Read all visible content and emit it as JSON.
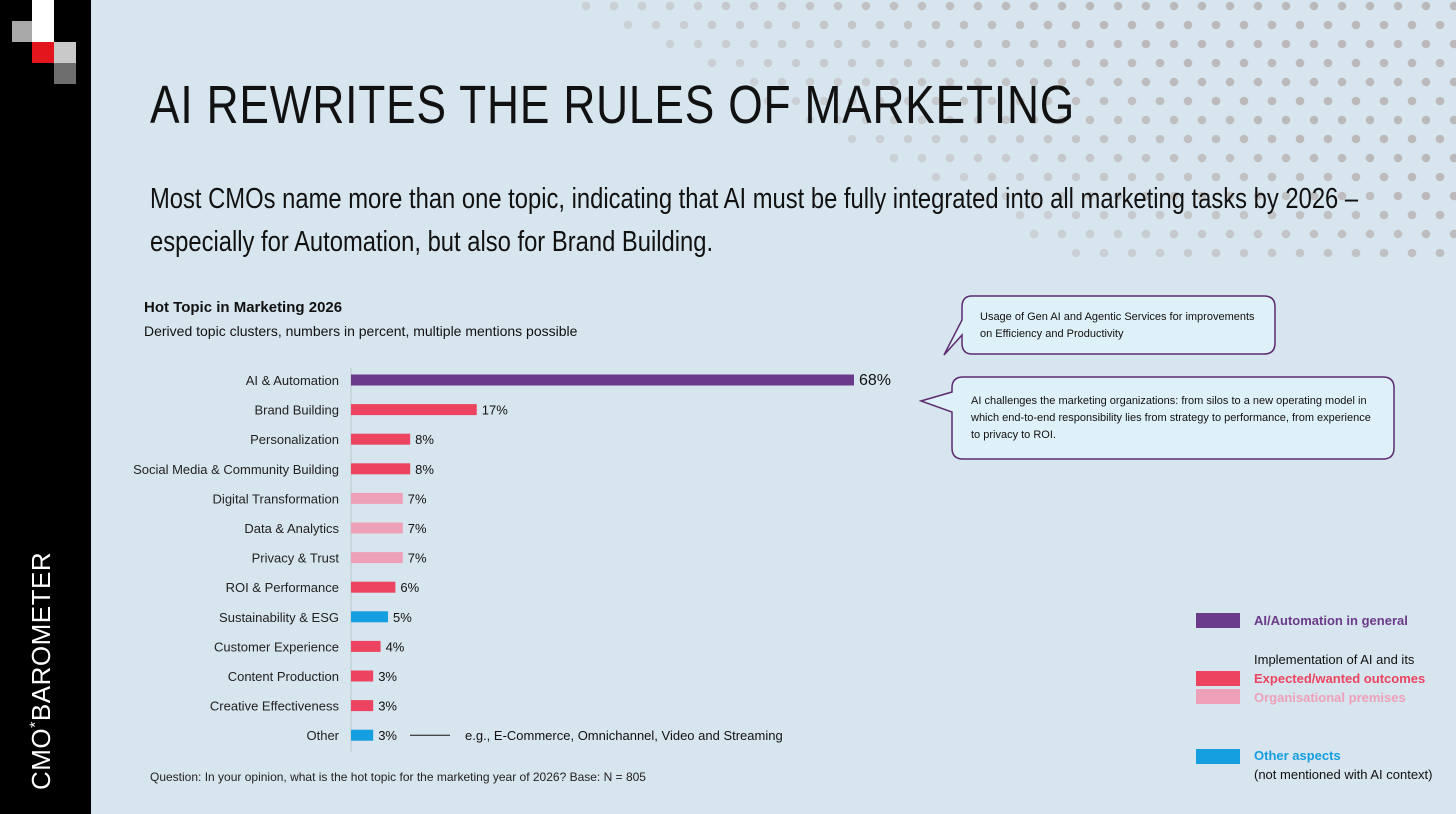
{
  "brand": {
    "name_part1": "CMO",
    "star": "*",
    "name_part2": "BAROMETER"
  },
  "title": "AI REWRITES THE RULES OF MARKETING",
  "subtitle": "Most CMOs name more than one topic, indicating that AI must be fully integrated into all marketing tasks by 2026 – especially for Automation, but also for Brand Building.",
  "chart_data": {
    "type": "bar",
    "orientation": "horizontal",
    "title": "Hot Topic in Marketing 2026",
    "subtitle": "Derived topic clusters, numbers in percent, multiple mentions possible",
    "categories": [
      "AI & Automation",
      "Brand Building",
      "Personalization",
      "Social Media & Community Building",
      "Digital Transformation",
      "Data & Analytics",
      "Privacy & Trust",
      "ROI & Performance",
      "Sustainability & ESG",
      "Customer Experience",
      "Content Production",
      "Creative Effectiveness",
      "Other"
    ],
    "values": [
      68,
      17,
      8,
      8,
      7,
      7,
      7,
      6,
      5,
      4,
      3,
      3,
      3
    ],
    "value_labels": [
      "68%",
      "17%",
      "8%",
      "8%",
      "7%",
      "7%",
      "7%",
      "6%",
      "5%",
      "4%",
      "3%",
      "3%",
      "3%"
    ],
    "groups": [
      "general",
      "outcomes",
      "outcomes",
      "outcomes",
      "premises",
      "premises",
      "premises",
      "outcomes",
      "other",
      "outcomes",
      "outcomes",
      "outcomes",
      "other"
    ],
    "colors": {
      "general": "#6b3a8a",
      "outcomes": "#ec4460",
      "premises": "#eea0b8",
      "other": "#159fe0"
    },
    "xlim": [
      0,
      68
    ],
    "annotation": "e.g., E-Commerce, Omnichannel, Video and Streaming"
  },
  "callouts": [
    "Usage of Gen AI and Agentic Services for improvements on Efficiency and Productivity",
    "AI challenges the marketing organizations: from silos to a new operating model in which end-to-end responsibility lies from strategy to performance, from experience to privacy to ROI."
  ],
  "legend": {
    "general": "AI/Automation in general",
    "impl_heading": "Implementation of AI and its",
    "outcomes": "Expected/wanted outcomes",
    "premises": "Organisational premises",
    "other": "Other aspects",
    "other_note": "(not mentioned with AI context)"
  },
  "question": "Question: In your opinion, what is the hot topic for the marketing year of 2026? Base: N = 805"
}
